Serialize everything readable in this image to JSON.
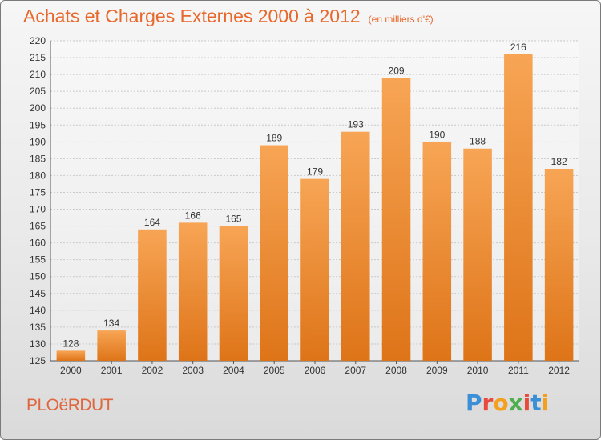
{
  "header": {
    "title": "Achats et Charges Externes 2000 à 2012",
    "unit": "(en milliers d'€)"
  },
  "footer": {
    "commune": "PLOëRDUT",
    "brand": "Proxiti",
    "brand_colors": [
      "#3a8fd6",
      "#e84a3c",
      "#f2a01e",
      "#4cae4c",
      "#e84a3c",
      "#3a8fd6",
      "#f2a01e"
    ]
  },
  "colors": {
    "bar_top": "#f7a555",
    "bar_bottom": "#de7418",
    "title": "#e8672a"
  },
  "chart_data": {
    "type": "bar",
    "categories": [
      "2000",
      "2001",
      "2002",
      "2003",
      "2004",
      "2005",
      "2006",
      "2007",
      "2008",
      "2009",
      "2010",
      "2011",
      "2012"
    ],
    "values": [
      128,
      134,
      164,
      166,
      165,
      189,
      179,
      193,
      209,
      190,
      188,
      216,
      182
    ],
    "title": "Achats et Charges Externes 2000 à 2012",
    "subtitle": "(en milliers d'€)",
    "xlabel": "",
    "ylabel": "",
    "ylim": [
      125,
      220
    ],
    "yticks": [
      125,
      130,
      135,
      140,
      145,
      150,
      155,
      160,
      165,
      170,
      175,
      180,
      185,
      190,
      195,
      200,
      205,
      210,
      215,
      220
    ],
    "grid": true
  }
}
